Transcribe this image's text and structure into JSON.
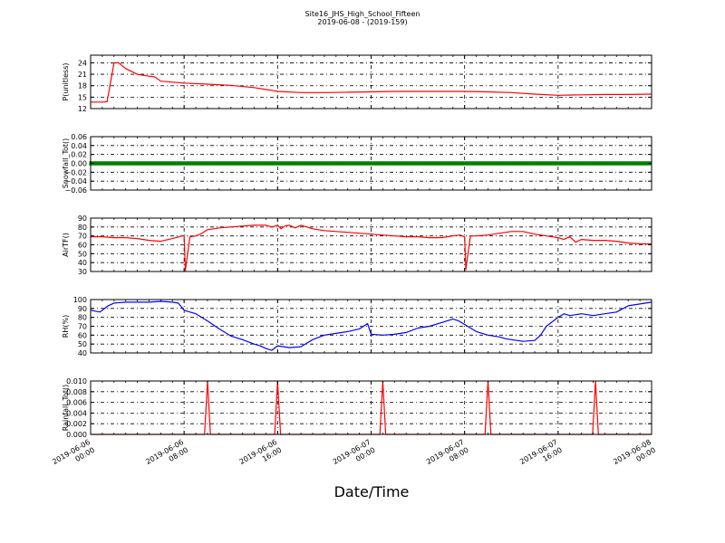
{
  "figure": {
    "title": "Site16_JHS_High_School_Fifteen",
    "subtitle": "2019-06-08 - (2019-159)",
    "xlabel": "Date/Time"
  },
  "chart_data": [
    {
      "type": "line",
      "ylabel": "P(unitless)",
      "ylim": [
        12,
        26
      ],
      "yticks": [
        "12",
        "15",
        "18",
        "21",
        "24"
      ],
      "ytick_values": [
        12,
        15,
        18,
        21,
        24
      ],
      "grid": true,
      "color": "#ff0000",
      "xlim": [
        0,
        48
      ],
      "series": [
        {
          "x": [
            0,
            1,
            1.4,
            1.6,
            2,
            2.4,
            3,
            4,
            5,
            5.5,
            6,
            8,
            10,
            12,
            14,
            15,
            15.5,
            16,
            18,
            20,
            22,
            24,
            26,
            28,
            30,
            32,
            34,
            36,
            38,
            40,
            42,
            44,
            46,
            48
          ],
          "y": [
            13.7,
            13.7,
            13.8,
            17,
            24,
            24,
            22.5,
            21,
            20.5,
            20.3,
            19.2,
            18.7,
            18.4,
            18.1,
            17.5,
            17,
            16.8,
            16.5,
            16.2,
            16.2,
            16.3,
            16.4,
            16.5,
            16.5,
            16.5,
            16.5,
            16.4,
            16.2,
            15.8,
            15.5,
            15.6,
            15.7,
            15.7,
            15.8
          ]
        }
      ]
    },
    {
      "type": "scatter",
      "ylabel": "Snowfall_Tot()",
      "ylim": [
        -0.06,
        0.06
      ],
      "yticks": [
        "−0.06",
        "−0.04",
        "−0.02",
        "0.00",
        "0.02",
        "0.04",
        "0.06"
      ],
      "ytick_values": [
        -0.06,
        -0.04,
        -0.02,
        0,
        0.02,
        0.04,
        0.06
      ],
      "grid": true,
      "color": "#008000",
      "xlim": [
        0,
        48
      ],
      "series": [
        {
          "x_range": [
            0,
            48
          ],
          "step": 0.1667,
          "y": 0
        }
      ]
    },
    {
      "type": "line",
      "ylabel": "AirTF()",
      "ylim": [
        30,
        90
      ],
      "yticks": [
        "30",
        "40",
        "50",
        "60",
        "70",
        "80",
        "90"
      ],
      "ytick_values": [
        30,
        40,
        50,
        60,
        70,
        80,
        90
      ],
      "grid": true,
      "color": "#ff0000",
      "xlim": [
        0,
        48
      ],
      "series": [
        {
          "x": [
            0,
            1,
            2,
            3,
            4,
            5,
            6,
            7,
            7.6,
            7.8,
            8,
            8.1,
            8.5,
            9,
            9.4,
            10,
            11,
            12,
            13,
            14,
            15,
            15.5,
            16,
            16.3,
            16.6,
            17,
            17.5,
            18,
            18.5,
            19,
            20,
            21,
            22,
            23,
            24,
            25,
            26,
            27,
            28,
            29,
            30,
            31,
            31.6,
            31.8,
            32,
            32.1,
            32.5,
            33,
            34,
            35,
            36,
            37,
            38,
            39,
            40,
            40.5,
            41,
            41.5,
            42,
            43,
            44,
            45,
            46,
            47,
            48
          ],
          "y": [
            69,
            69,
            68,
            68,
            67,
            65,
            64,
            67,
            69,
            70,
            70,
            31,
            69,
            70,
            72,
            77,
            79,
            80,
            81,
            82,
            82,
            80,
            82,
            78,
            81,
            82,
            79,
            82,
            80,
            78,
            76,
            75,
            74,
            73,
            72,
            71,
            70,
            69,
            69,
            68,
            68,
            70,
            71,
            70,
            69,
            32,
            70,
            70,
            71,
            73,
            75,
            75,
            72,
            70,
            68,
            66,
            69,
            63,
            66,
            65,
            65,
            64,
            62,
            61,
            61
          ]
        }
      ]
    },
    {
      "type": "line",
      "ylabel": "RH(%)",
      "ylim": [
        40,
        100
      ],
      "yticks": [
        "40",
        "50",
        "60",
        "70",
        "80",
        "90",
        "100"
      ],
      "ytick_values": [
        40,
        50,
        60,
        70,
        80,
        90,
        100
      ],
      "grid": true,
      "color": "#0000ff",
      "xlim": [
        0,
        48
      ],
      "series": [
        {
          "x": [
            0,
            0.8,
            1.5,
            2,
            3,
            4,
            5,
            6,
            7,
            7.5,
            8,
            8.5,
            9,
            10,
            11,
            12,
            13,
            14,
            14.5,
            15,
            15.5,
            16,
            17,
            18,
            19,
            20,
            21,
            22,
            23,
            23.7,
            24,
            25,
            26,
            27,
            28,
            29,
            30,
            31,
            31.5,
            32,
            33,
            34,
            35,
            35.5,
            36,
            37,
            38,
            38.5,
            39,
            40,
            40.5,
            41,
            42,
            43,
            44,
            45,
            46,
            47,
            48
          ],
          "y": [
            88,
            86,
            93,
            96,
            97,
            97,
            97,
            98,
            97,
            96,
            88,
            86,
            84,
            76,
            67,
            59,
            55,
            50,
            48,
            45,
            43,
            48,
            46,
            47,
            55,
            60,
            62,
            64,
            67,
            73,
            61,
            60,
            61,
            63,
            68,
            70,
            74,
            78,
            76,
            72,
            64,
            60,
            58,
            56,
            55,
            53,
            54,
            60,
            70,
            80,
            84,
            82,
            84,
            82,
            84,
            86,
            93,
            95,
            97
          ]
        }
      ]
    },
    {
      "type": "line",
      "ylabel": "Rainfall_Tot()",
      "ylim": [
        0,
        0.01
      ],
      "yticks": [
        "0.000",
        "0.002",
        "0.004",
        "0.006",
        "0.008",
        "0.010"
      ],
      "ytick_values": [
        0,
        0.002,
        0.004,
        0.006,
        0.008,
        0.01
      ],
      "grid": true,
      "color": "#ff0000",
      "xlim": [
        0,
        48
      ],
      "series": [
        {
          "baseline": 0,
          "spikes_x": [
            10,
            16,
            25,
            34,
            43.2
          ],
          "spike_value": 0.01
        }
      ]
    }
  ],
  "xticks": [
    {
      "date": "2019-06-06",
      "time": "00:00",
      "x": 0
    },
    {
      "date": "2019-06-06",
      "time": "08:00",
      "x": 8
    },
    {
      "date": "2019-06-06",
      "time": "16:00",
      "x": 16
    },
    {
      "date": "2019-06-07",
      "time": "00:00",
      "x": 24
    },
    {
      "date": "2019-06-07",
      "time": "08:00",
      "x": 32
    },
    {
      "date": "2019-06-07",
      "time": "16:00",
      "x": 40
    },
    {
      "date": "2019-06-08",
      "time": "00:00",
      "x": 48
    }
  ]
}
